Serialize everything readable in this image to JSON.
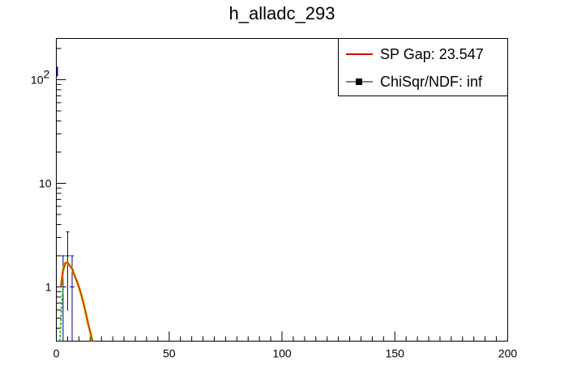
{
  "chart_data": {
    "type": "line",
    "title": "h_alladc_293",
    "xlabel": "",
    "ylabel": "",
    "xlim": [
      0,
      200
    ],
    "ylim": [
      0.3,
      250
    ],
    "yscale": "log",
    "x_ticks": [
      {
        "value": 0,
        "label": "0"
      },
      {
        "value": 50,
        "label": "50"
      },
      {
        "value": 100,
        "label": "100"
      },
      {
        "value": 150,
        "label": "150"
      },
      {
        "value": 200,
        "label": "200"
      }
    ],
    "y_ticks": [
      {
        "value": 1,
        "label": "1"
      },
      {
        "value": 10,
        "label": "10"
      },
      {
        "value": 100,
        "label": "10",
        "exponent": "2"
      }
    ],
    "grid": false,
    "legend_position": "top-right",
    "legend": [
      {
        "label": "SP Gap: 23.547",
        "color": "#d40000",
        "marker": "line"
      },
      {
        "label": "ChiSqr/NDF: inf",
        "color": "#000000",
        "marker": "square"
      }
    ],
    "histogram": {
      "color": "#00008b",
      "bins": [
        {
          "x": 1,
          "y": 0,
          "err": 0
        },
        {
          "x": 3,
          "y": 1,
          "err": 1
        },
        {
          "x": 5,
          "y": 2,
          "err": 1.41
        },
        {
          "x": 7,
          "y": 1,
          "err": 1
        }
      ],
      "overflow_marker": {
        "x": 0,
        "y": 120
      }
    },
    "fit_curve": {
      "color": "#d40000",
      "outline_color": "#d4b000",
      "x": [
        2,
        3,
        4,
        5,
        6,
        7,
        8,
        9,
        10,
        11,
        12,
        13,
        14,
        15,
        16
      ],
      "y": [
        1.0,
        1.45,
        1.7,
        1.72,
        1.6,
        1.5,
        1.3,
        1.15,
        1.0,
        0.85,
        0.7,
        0.57,
        0.45,
        0.37,
        0.3
      ]
    },
    "background_curve": {
      "color": "#20c020",
      "x": [
        1.5,
        2,
        2.5,
        3
      ],
      "y": [
        0.3,
        0.45,
        0.75,
        1.0
      ]
    }
  }
}
